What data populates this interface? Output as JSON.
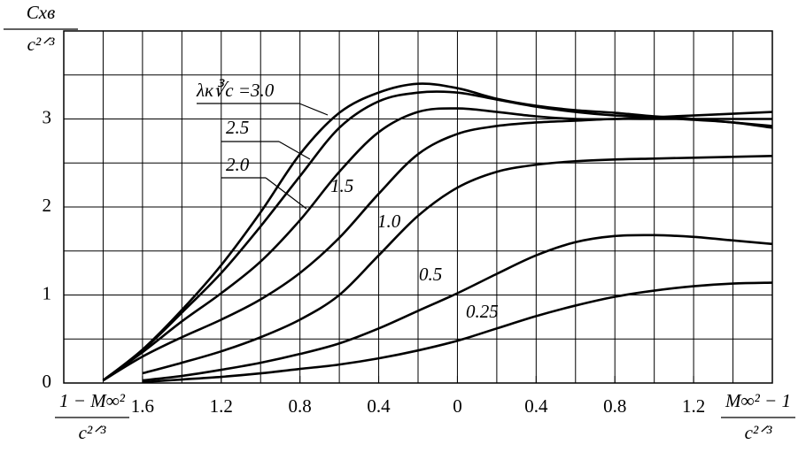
{
  "chart_data": {
    "type": "line",
    "y_label": {
      "numerator": "Cxв",
      "denominator": "c²ᐟ³"
    },
    "x_label_left": {
      "numerator": "1 − M∞²",
      "denominator": "c²ᐟ³"
    },
    "x_label_right": {
      "numerator": "M∞² − 1",
      "denominator": "c²ᐟ³"
    },
    "x": [
      -1.8,
      -1.6,
      -1.4,
      -1.2,
      -1.0,
      -0.8,
      -0.6,
      -0.4,
      -0.2,
      0,
      0.2,
      0.4,
      0.6,
      0.8,
      1.0,
      1.2,
      1.4,
      1.6
    ],
    "series": [
      {
        "name": "λк∛c =3.0",
        "color": "#000",
        "values": [
          0.03,
          0.38,
          0.83,
          1.34,
          1.94,
          2.6,
          3.07,
          3.3,
          3.4,
          3.35,
          3.23,
          3.15,
          3.1,
          3.07,
          3.03,
          3.0,
          2.96,
          2.92
        ]
      },
      {
        "name": "2.5",
        "color": "#000",
        "values": [
          0.03,
          0.37,
          0.8,
          1.25,
          1.78,
          2.35,
          2.9,
          3.2,
          3.3,
          3.3,
          3.22,
          3.14,
          3.08,
          3.04,
          3.02,
          2.99,
          2.96,
          2.9
        ]
      },
      {
        "name": "2.0",
        "color": "#000",
        "values": [
          0.03,
          0.35,
          0.7,
          1.02,
          1.38,
          1.85,
          2.4,
          2.85,
          3.08,
          3.12,
          3.08,
          3.03,
          3.0,
          3.0,
          3.02,
          3.04,
          3.06,
          3.08
        ]
      },
      {
        "name": "1.5",
        "color": "#000",
        "values": [
          0.03,
          0.3,
          0.52,
          0.72,
          0.95,
          1.25,
          1.65,
          2.15,
          2.6,
          2.83,
          2.92,
          2.96,
          2.98,
          3.0,
          3.0,
          3.0,
          3.0,
          3.0
        ]
      },
      {
        "name": "1.0",
        "color": "#000",
        "values": [
          null,
          0.11,
          0.23,
          0.36,
          0.52,
          0.72,
          1.0,
          1.45,
          1.9,
          2.22,
          2.4,
          2.48,
          2.52,
          2.54,
          2.55,
          2.56,
          2.57,
          2.58
        ]
      },
      {
        "name": "0.5",
        "color": "#000",
        "values": [
          null,
          0.03,
          0.08,
          0.15,
          0.23,
          0.33,
          0.45,
          0.62,
          0.82,
          1.02,
          1.24,
          1.45,
          1.6,
          1.67,
          1.68,
          1.66,
          1.62,
          1.58
        ]
      },
      {
        "name": "0.25",
        "color": "#000",
        "values": [
          null,
          0.01,
          0.04,
          0.07,
          0.11,
          0.16,
          0.21,
          0.28,
          0.37,
          0.48,
          0.62,
          0.76,
          0.88,
          0.98,
          1.05,
          1.1,
          1.13,
          1.14
        ]
      }
    ],
    "xlim": [
      -2.0,
      1.6
    ],
    "ylim": [
      0,
      4
    ],
    "xticks": [
      {
        "value": -1.6,
        "label": "1.6"
      },
      {
        "value": -1.2,
        "label": "1.2"
      },
      {
        "value": -0.8,
        "label": "0.8"
      },
      {
        "value": -0.4,
        "label": "0.4"
      },
      0,
      0.4,
      0.8,
      1.2
    ],
    "yticks": [
      0,
      1,
      2,
      3
    ],
    "xgrid": [
      -1.8,
      -1.6,
      -1.4,
      -1.2,
      -1.0,
      -0.8,
      -0.6,
      -0.4,
      -0.2,
      0,
      0.2,
      0.4,
      0.6,
      0.8,
      1.0,
      1.2,
      1.4
    ],
    "ygrid": [
      0.5,
      1,
      1.5,
      2,
      2.5,
      3,
      3.5
    ],
    "grid": true
  }
}
